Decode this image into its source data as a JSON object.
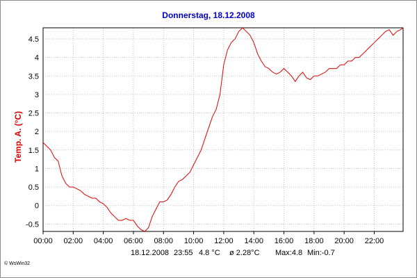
{
  "colors": {
    "title": "#0000cc",
    "series": "#dd0000",
    "ylabel": "#dd0000",
    "grid": "#c0c0c0",
    "frame": "#000000"
  },
  "footer": {
    "date": "18.12.2008",
    "time": "23:55",
    "current": "4.8 °C",
    "average": "ø 2.28°C",
    "max": "Max:4.8",
    "min": "Min:-0.7"
  },
  "credit": "© WsWin32",
  "chart_data": {
    "type": "line",
    "title": "Donnerstag, 18.12.2008",
    "xlabel": "",
    "ylabel": "Temp. A.  (°C)",
    "x_ticks": [
      "00:00",
      "02:00",
      "04:00",
      "06:00",
      "08:00",
      "10:00",
      "12:00",
      "14:00",
      "16:00",
      "18:00",
      "20:00",
      "22:00"
    ],
    "y_ticks": [
      "-0.5",
      "0",
      "0.5",
      "1",
      "1.5",
      "2",
      "2.5",
      "3",
      "3.5",
      "4",
      "4.5"
    ],
    "xlim": [
      "00:00",
      "23:55"
    ],
    "ylim": [
      -0.7,
      4.8
    ],
    "grid": true,
    "legend": "none",
    "series": [
      {
        "x": [
          "00:00",
          "00:15",
          "00:30",
          "00:45",
          "01:00",
          "01:15",
          "01:30",
          "01:45",
          "02:00",
          "02:15",
          "02:30",
          "02:45",
          "03:00",
          "03:15",
          "03:30",
          "03:45",
          "04:00",
          "04:15",
          "04:30",
          "04:45",
          "05:00",
          "05:15",
          "05:30",
          "05:45",
          "06:00",
          "06:15",
          "06:30",
          "06:45",
          "07:00",
          "07:15",
          "07:30",
          "07:45",
          "08:00",
          "08:15",
          "08:30",
          "08:45",
          "09:00",
          "09:15",
          "09:30",
          "09:45",
          "10:00",
          "10:15",
          "10:30",
          "10:45",
          "11:00",
          "11:15",
          "11:30",
          "11:45",
          "12:00",
          "12:15",
          "12:30",
          "12:45",
          "13:00",
          "13:15",
          "13:30",
          "13:45",
          "14:00",
          "14:15",
          "14:30",
          "14:45",
          "15:00",
          "15:15",
          "15:30",
          "15:45",
          "16:00",
          "16:15",
          "16:30",
          "16:45",
          "17:00",
          "17:15",
          "17:30",
          "17:45",
          "18:00",
          "18:15",
          "18:30",
          "18:45",
          "19:00",
          "19:15",
          "19:30",
          "19:45",
          "20:00",
          "20:15",
          "20:30",
          "20:45",
          "21:00",
          "21:15",
          "21:30",
          "21:45",
          "22:00",
          "22:15",
          "22:30",
          "22:45",
          "23:00",
          "23:15",
          "23:30",
          "23:45",
          "23:55"
        ],
        "values": [
          1.7,
          1.6,
          1.5,
          1.3,
          1.2,
          0.8,
          0.6,
          0.5,
          0.5,
          0.45,
          0.4,
          0.3,
          0.25,
          0.2,
          0.2,
          0.1,
          0.05,
          -0.05,
          -0.2,
          -0.3,
          -0.4,
          -0.4,
          -0.35,
          -0.4,
          -0.4,
          -0.55,
          -0.65,
          -0.7,
          -0.6,
          -0.3,
          -0.1,
          0.1,
          0.1,
          0.15,
          0.3,
          0.5,
          0.65,
          0.7,
          0.8,
          0.9,
          1.1,
          1.3,
          1.5,
          1.8,
          2.1,
          2.4,
          2.6,
          3.0,
          3.8,
          4.2,
          4.4,
          4.5,
          4.7,
          4.8,
          4.7,
          4.6,
          4.4,
          4.1,
          3.9,
          3.75,
          3.7,
          3.6,
          3.55,
          3.6,
          3.7,
          3.6,
          3.5,
          3.35,
          3.5,
          3.6,
          3.45,
          3.4,
          3.5,
          3.5,
          3.55,
          3.6,
          3.7,
          3.7,
          3.7,
          3.8,
          3.8,
          3.9,
          3.9,
          4.0,
          4.0,
          4.1,
          4.2,
          4.3,
          4.4,
          4.5,
          4.6,
          4.7,
          4.75,
          4.6,
          4.7,
          4.75,
          4.8
        ]
      }
    ]
  }
}
